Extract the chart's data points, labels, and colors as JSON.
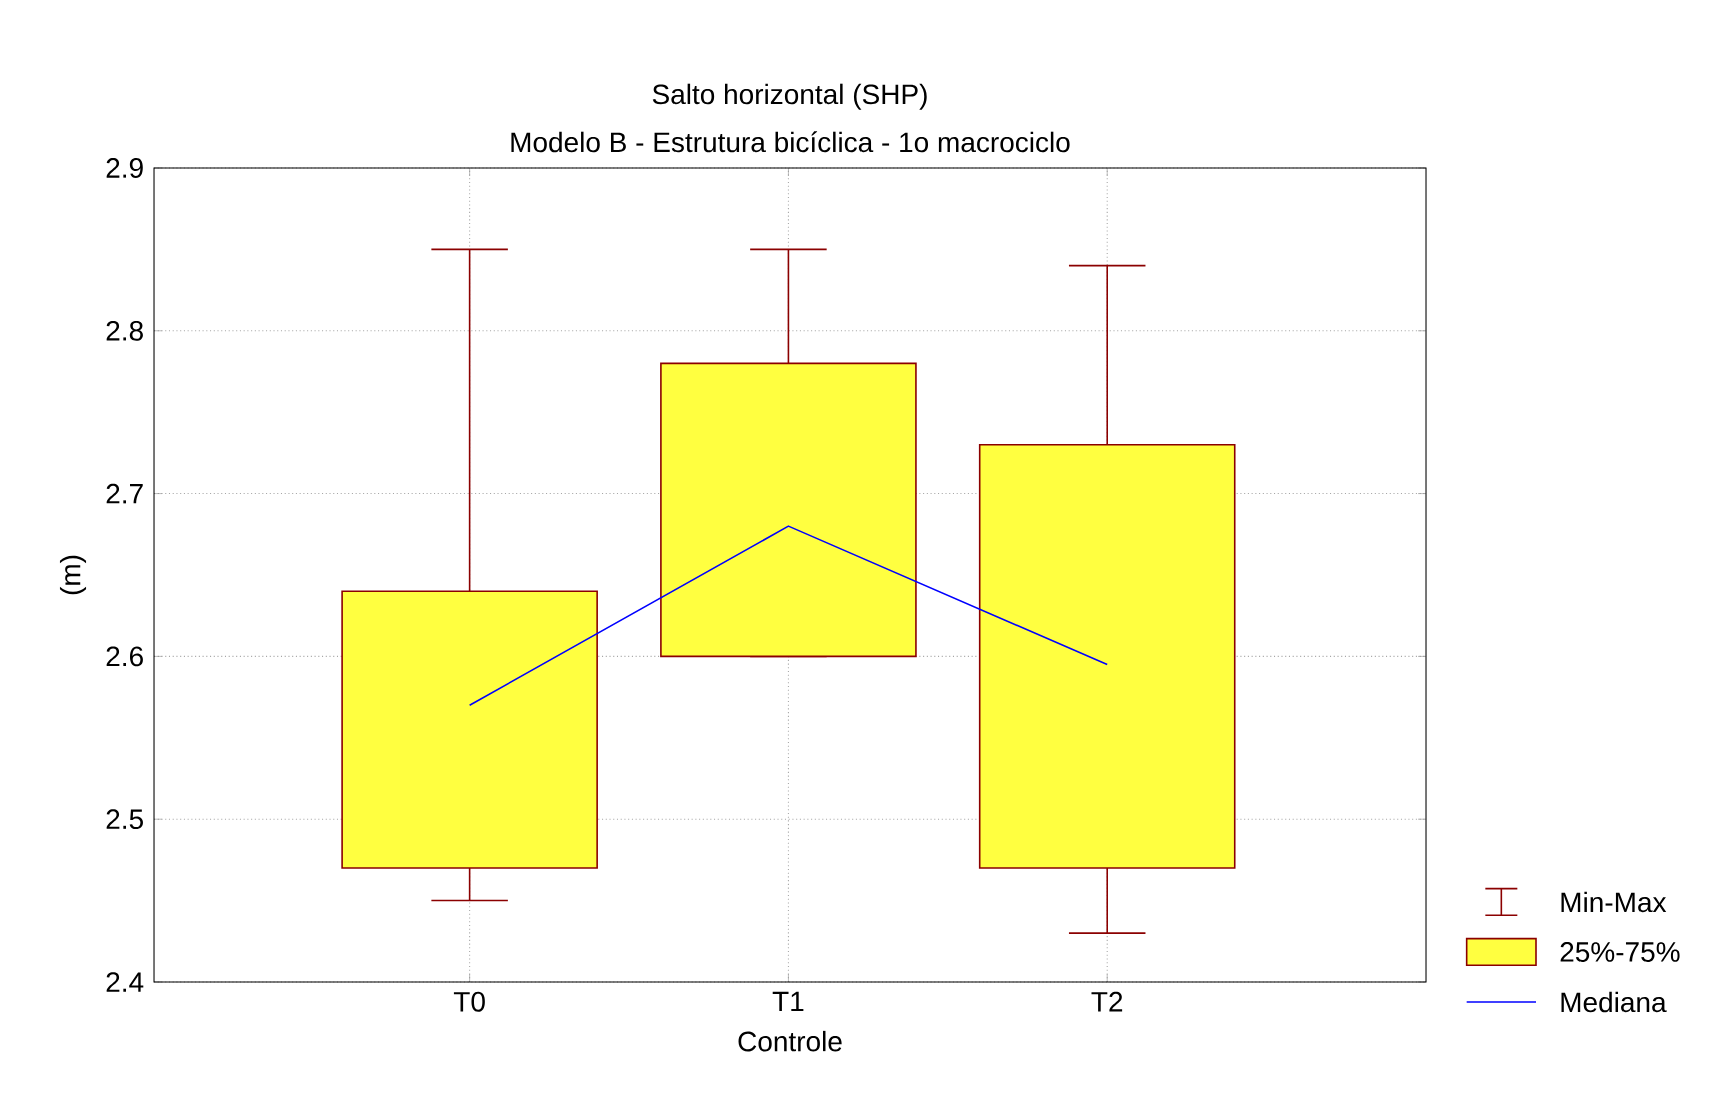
{
  "chart_data": {
    "type": "box",
    "title": "Salto horizontal (SHP)",
    "subtitle": "Modelo B - Estrutura bicíclica - 1o macrociclo",
    "xlabel": "Controle",
    "ylabel": "(m)",
    "categories": [
      "T0",
      "T1",
      "T2"
    ],
    "ylim": [
      2.4,
      2.9
    ],
    "yticks": [
      2.4,
      2.5,
      2.6,
      2.7,
      2.8,
      2.9
    ],
    "grid": true,
    "legend": "bottom right",
    "annotations": [
      "Min-Max"
    ],
    "series": [
      {
        "name": "25%-75%",
        "color": "#ffff40",
        "boxes": [
          {
            "low": 2.45,
            "q1": 2.47,
            "q3": 2.64,
            "high": 2.85
          },
          {
            "low": 2.6,
            "q1": 2.6,
            "q3": 2.78,
            "high": 2.85
          },
          {
            "low": 2.43,
            "q1": 2.47,
            "q3": 2.73,
            "high": 2.84
          }
        ]
      },
      {
        "name": "Mediana",
        "type": "line",
        "color": "#0000ff",
        "values": [
          2.57,
          2.68,
          2.595
        ]
      }
    ]
  }
}
